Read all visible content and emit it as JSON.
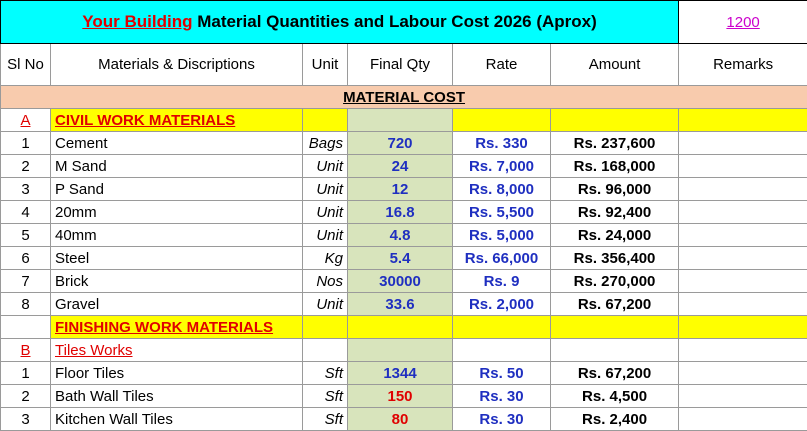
{
  "title": {
    "highlight": "Your Building",
    "text": "Material Quantities and Labour Cost 2026 (Aprox)",
    "remark": "1200"
  },
  "header": [
    "Sl No",
    "Materials & Discriptions",
    "Unit",
    "Final Qty",
    "Rate",
    "Amount",
    "Remarks"
  ],
  "section": "MATERIAL COST",
  "civil": {
    "sl": "A",
    "title": "CIVIL WORK MATERIALS",
    "rows": [
      [
        "1",
        "Cement",
        "Bags",
        "720",
        "Rs. 330",
        "Rs. 237,600"
      ],
      [
        "2",
        "M Sand",
        "Unit",
        "24",
        "Rs. 7,000",
        "Rs. 168,000"
      ],
      [
        "3",
        "P Sand",
        "Unit",
        "12",
        "Rs. 8,000",
        "Rs. 96,000"
      ],
      [
        "4",
        "20mm",
        "Unit",
        "16.8",
        "Rs. 5,500",
        "Rs. 92,400"
      ],
      [
        "5",
        "40mm",
        "Unit",
        "4.8",
        "Rs. 5,000",
        "Rs. 24,000"
      ],
      [
        "6",
        "Steel",
        "Kg",
        "5.4",
        "Rs. 66,000",
        "Rs. 356,400"
      ],
      [
        "7",
        "Brick",
        "Nos",
        "30000",
        "Rs. 9",
        "Rs. 270,000"
      ],
      [
        "8",
        "Gravel",
        "Unit",
        "33.6",
        "Rs. 2,000",
        "Rs. 67,200"
      ]
    ]
  },
  "finishing": {
    "title": "FINISHING WORK MATERIALS",
    "sub": {
      "sl": "B",
      "title": "Tiles Works",
      "qty_colors": [
        "#1f2fc0",
        "#e00000",
        "#e00000"
      ],
      "rows": [
        [
          "1",
          "Floor Tiles",
          "Sft",
          "1344",
          "Rs. 50",
          "Rs. 67,200"
        ],
        [
          "2",
          "Bath Wall Tiles",
          "Sft",
          "150",
          "Rs. 30",
          "Rs. 4,500"
        ],
        [
          "3",
          "Kitchen Wall Tiles",
          "Sft",
          "80",
          "Rs. 30",
          "Rs. 2,400"
        ]
      ]
    }
  }
}
